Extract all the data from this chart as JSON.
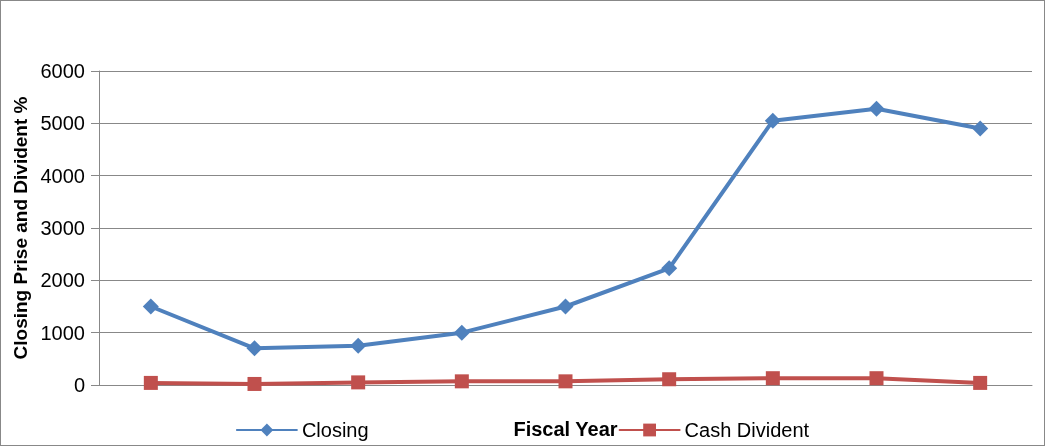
{
  "chart_data": {
    "type": "line",
    "ylabel": "Closing Prise and Divident %",
    "xlabel": "Fiscal Year",
    "categories": [
      null,
      null,
      null,
      null,
      null,
      null,
      null,
      null,
      null
    ],
    "series": [
      {
        "name": "Closing",
        "color": "#4f81bd",
        "marker": "diamond",
        "values": [
          1500,
          700,
          750,
          1000,
          1500,
          2230,
          5050,
          5280,
          4900
        ]
      },
      {
        "name": "Cash Divident",
        "color": "#c0504d",
        "marker": "square",
        "values": [
          40,
          20,
          50,
          70,
          70,
          110,
          130,
          130,
          40
        ]
      }
    ],
    "ylim": [
      0,
      6000
    ],
    "yticks": [
      0,
      1000,
      2000,
      3000,
      4000,
      5000,
      6000
    ],
    "grid": "y",
    "legend": "bottom"
  }
}
